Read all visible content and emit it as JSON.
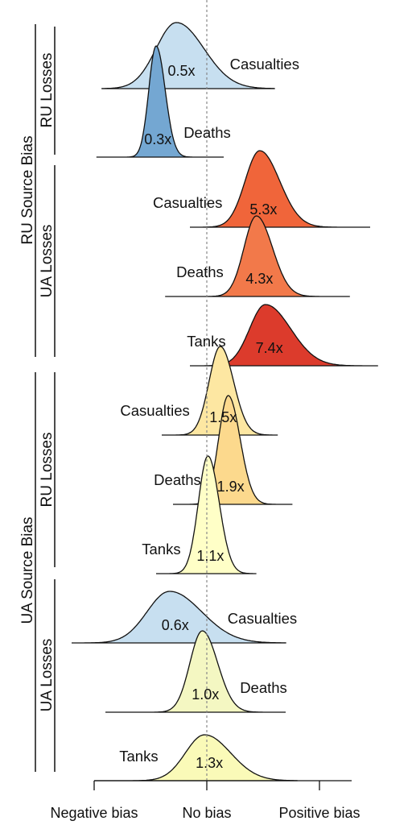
{
  "chart_data": {
    "type": "ridgeline",
    "xlabel": "",
    "ylabel": "",
    "x_ticks": [
      {
        "value": -1,
        "label": "Negative bias"
      },
      {
        "value": 0,
        "label": "No bias"
      },
      {
        "value": 1,
        "label": "Positive bias"
      }
    ],
    "reference_line": 0,
    "groups": [
      {
        "label": "RU Source Bias",
        "subgroups": [
          {
            "label": "RU Losses",
            "rows": [
              "ru-ru-casualties",
              "ru-ru-deaths"
            ]
          },
          {
            "label": "UA Losses",
            "rows": [
              "ru-ua-casualties",
              "ru-ua-deaths",
              "ru-ua-tanks"
            ]
          }
        ]
      },
      {
        "label": "UA Source Bias",
        "subgroups": [
          {
            "label": "RU Losses",
            "rows": [
              "ua-ru-casualties",
              "ua-ru-deaths",
              "ua-ru-tanks"
            ]
          },
          {
            "label": "UA Losses",
            "rows": [
              "ua-ua-casualties",
              "ua-ua-deaths",
              "ua-ua-tanks"
            ]
          }
        ]
      }
    ],
    "series": [
      {
        "id": "ru-ru-casualties",
        "category": "Casualties",
        "multiplier": "0.5x",
        "center": -0.27,
        "sd": 0.18,
        "skew": 0.06,
        "range": [
          -0.93,
          0.6
        ],
        "color": "#c7dff0",
        "label_side": "right",
        "mult_color": "#111111"
      },
      {
        "id": "ru-ru-deaths",
        "category": "Deaths",
        "multiplier": "0.3x",
        "center": -0.45,
        "sd": 0.065,
        "skew": 0.04,
        "range": [
          -0.98,
          0.15
        ],
        "color": "#74a7d2",
        "label_side": "right",
        "mult_color": "#ffffff"
      },
      {
        "id": "ru-ua-casualties",
        "category": "Casualties",
        "multiplier": "5.3x",
        "center": 0.47,
        "sd": 0.13,
        "skew": 0.06,
        "range": [
          -0.15,
          1.45
        ],
        "color": "#f0653a",
        "label_side": "left",
        "mult_color": "#ffffff"
      },
      {
        "id": "ru-ua-deaths",
        "category": "Deaths",
        "multiplier": "4.3x",
        "center": 0.44,
        "sd": 0.11,
        "skew": 0.05,
        "range": [
          -0.37,
          1.27
        ],
        "color": "#f2794a",
        "label_side": "left",
        "mult_color": "#ffffff"
      },
      {
        "id": "ru-ua-tanks",
        "category": "Tanks",
        "multiplier": "7.4x",
        "center": 0.52,
        "sd": 0.14,
        "skew": 0.1,
        "range": [
          -0.15,
          1.52
        ],
        "color": "#dc3b2c",
        "label_side": "left",
        "mult_color": "#ffffff"
      },
      {
        "id": "ua-ru-casualties",
        "category": "Casualties",
        "multiplier": "1.5x",
        "center": 0.12,
        "sd": 0.1,
        "skew": 0.03,
        "range": [
          -0.4,
          0.63
        ],
        "color": "#fde7a2",
        "label_side": "left",
        "mult_color": "#111111"
      },
      {
        "id": "ua-ru-deaths",
        "category": "Deaths",
        "multiplier": "1.9x",
        "center": 0.19,
        "sd": 0.085,
        "skew": 0.04,
        "range": [
          -0.3,
          0.76
        ],
        "color": "#fcd98d",
        "label_side": "left",
        "mult_color": "#111111"
      },
      {
        "id": "ua-ru-tanks",
        "category": "Tanks",
        "multiplier": "1.1x",
        "center": 0.01,
        "sd": 0.085,
        "skew": 0.03,
        "range": [
          -0.45,
          0.44
        ],
        "color": "#ffffc7",
        "label_side": "left",
        "mult_color": "#111111"
      },
      {
        "id": "ua-ua-casualties",
        "category": "Casualties",
        "multiplier": "0.6x",
        "center": -0.33,
        "sd": 0.2,
        "skew": 0.07,
        "range": [
          -1.2,
          0.7
        ],
        "color": "#c7dff0",
        "label_side": "right",
        "mult_color": "#111111"
      },
      {
        "id": "ua-ua-deaths",
        "category": "Deaths",
        "multiplier": "1.0x",
        "center": -0.04,
        "sd": 0.11,
        "skew": 0.04,
        "range": [
          -0.9,
          0.7
        ],
        "color": "#f4f7c2",
        "label_side": "right",
        "mult_color": "#111111"
      },
      {
        "id": "ua-ua-tanks",
        "category": "Tanks",
        "multiplier": "1.3x",
        "center": -0.02,
        "sd": 0.17,
        "skew": 0.06,
        "range": [
          -1.0,
          0.8
        ],
        "color": "#fafab8",
        "label_side": "left",
        "mult_color": "#111111"
      }
    ]
  }
}
